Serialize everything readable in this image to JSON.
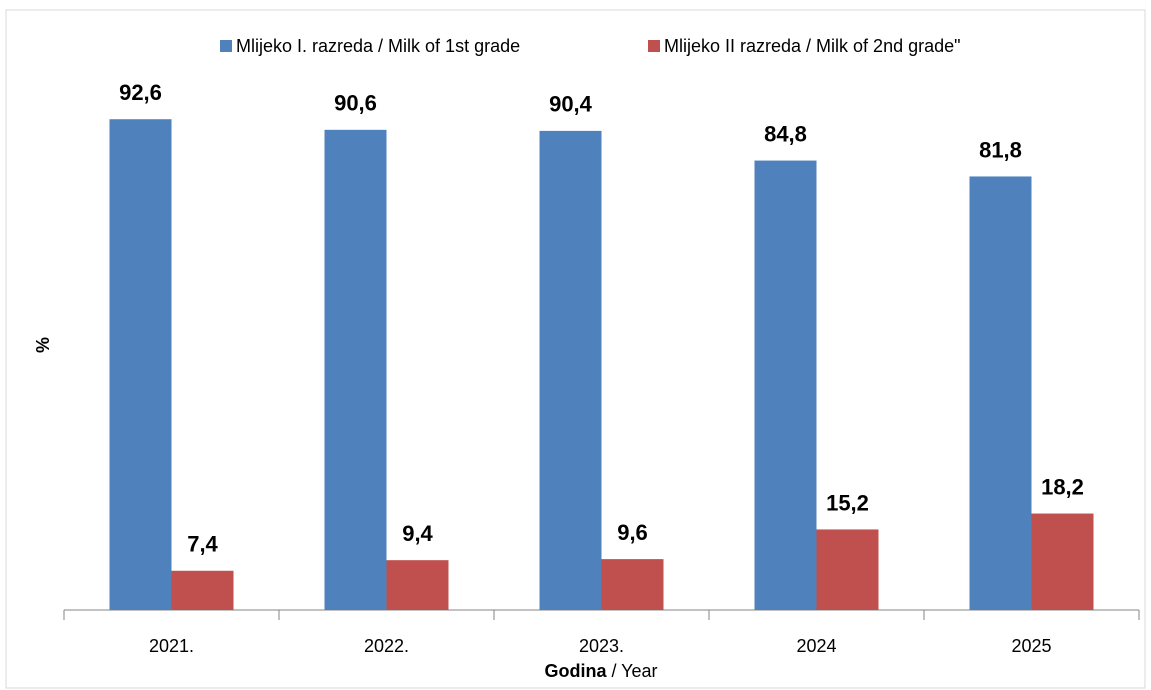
{
  "chart_data": {
    "type": "bar",
    "ylabel": "%",
    "xlabel_parts": [
      "Godina",
      "/ Year"
    ],
    "categories": [
      "2021.",
      "2022.",
      "2023.",
      "2024",
      "2025"
    ],
    "series": [
      {
        "name": "Mlijeko I. razreda / Milk of 1st grade",
        "color": "#4f81bd",
        "values": [
          92.6,
          90.6,
          90.4,
          84.8,
          81.8
        ],
        "value_labels": [
          "92,6",
          "90,6",
          "90,4",
          "84,8",
          "81,8"
        ]
      },
      {
        "name": "Mlijeko II razreda / Milk of 2nd grade\"",
        "color": "#c0504d",
        "values": [
          7.4,
          9.4,
          9.6,
          15.2,
          18.2
        ],
        "value_labels": [
          "7,4",
          "9,4",
          "9,6",
          "15,2",
          "18,2"
        ]
      }
    ],
    "ylim": [
      0,
      100
    ],
    "legend": "top"
  }
}
